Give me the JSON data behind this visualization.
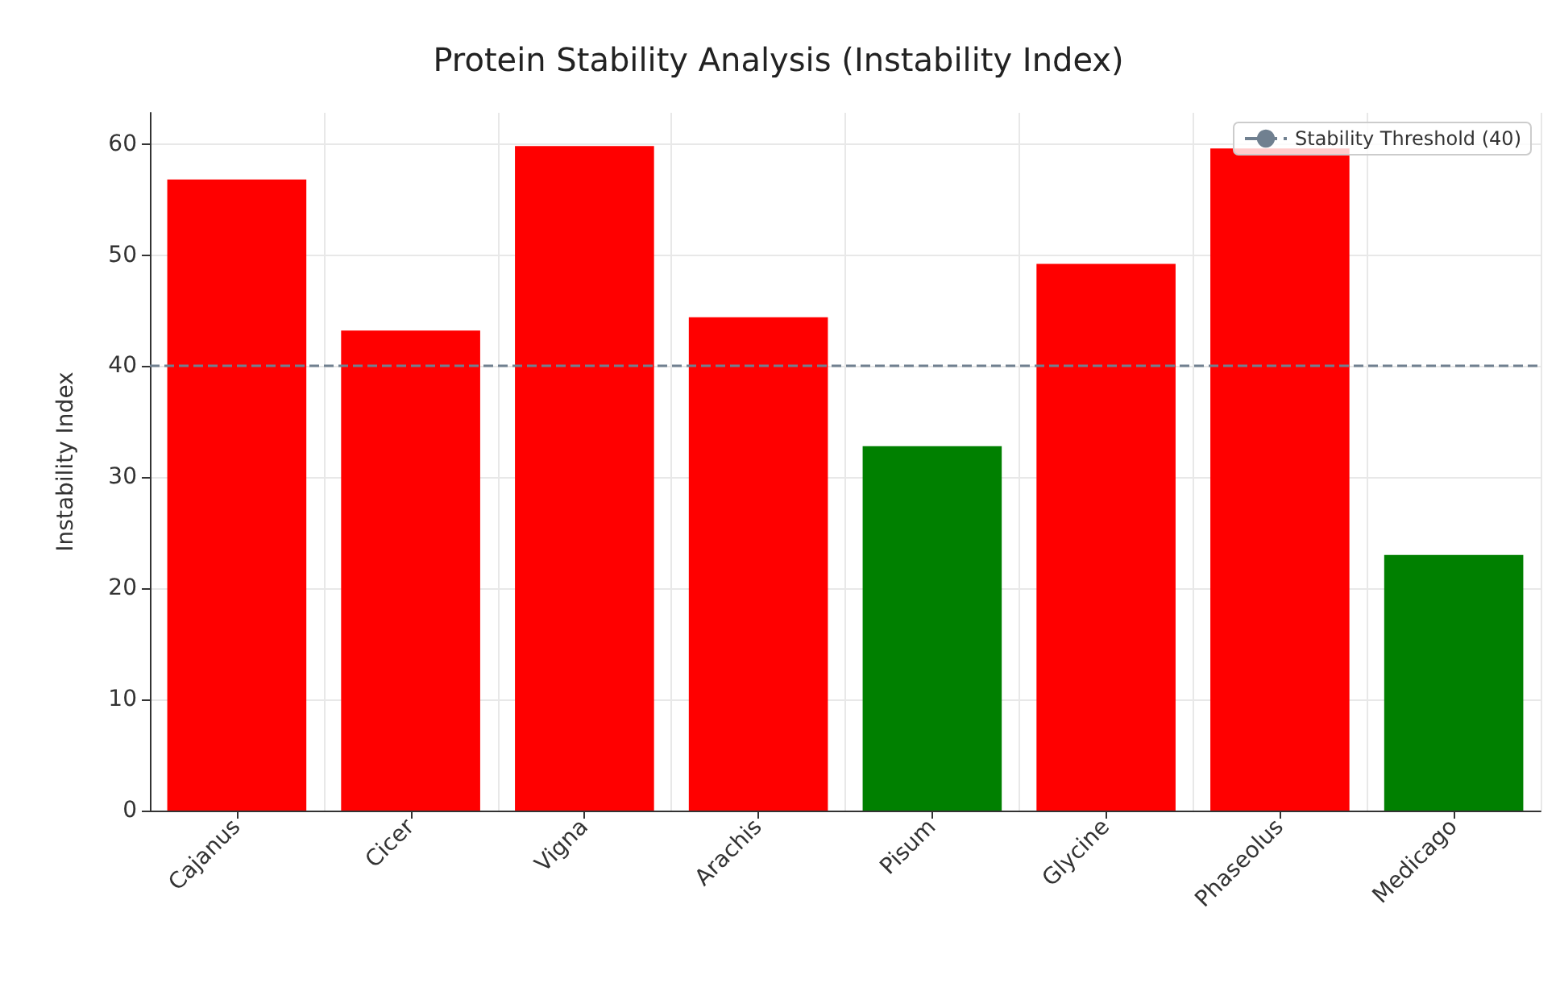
{
  "chart_data": {
    "type": "bar",
    "title": "Protein Stability Analysis (Instability Index)",
    "ylabel": "Instability Index",
    "categories": [
      "Cajanus",
      "Cicer",
      "Vigna",
      "Arachis",
      "Pisum",
      "Glycine",
      "Phaseolus",
      "Medicago"
    ],
    "values": [
      56.8,
      43.2,
      59.8,
      44.4,
      32.8,
      49.2,
      59.6,
      23.0
    ],
    "colors": [
      "#ff0000",
      "#ff0000",
      "#ff0000",
      "#ff0000",
      "#008000",
      "#ff0000",
      "#ff0000",
      "#008000"
    ],
    "ylim": [
      0,
      62.8
    ],
    "yticks": [
      0,
      10,
      20,
      30,
      40,
      50,
      60
    ],
    "grid": true,
    "legend": "top right",
    "ref_lines": [
      {
        "axis": "y",
        "value": 40,
        "label": "Stability Threshold (40)",
        "color": "#708090",
        "line_style": "dashed"
      }
    ]
  }
}
